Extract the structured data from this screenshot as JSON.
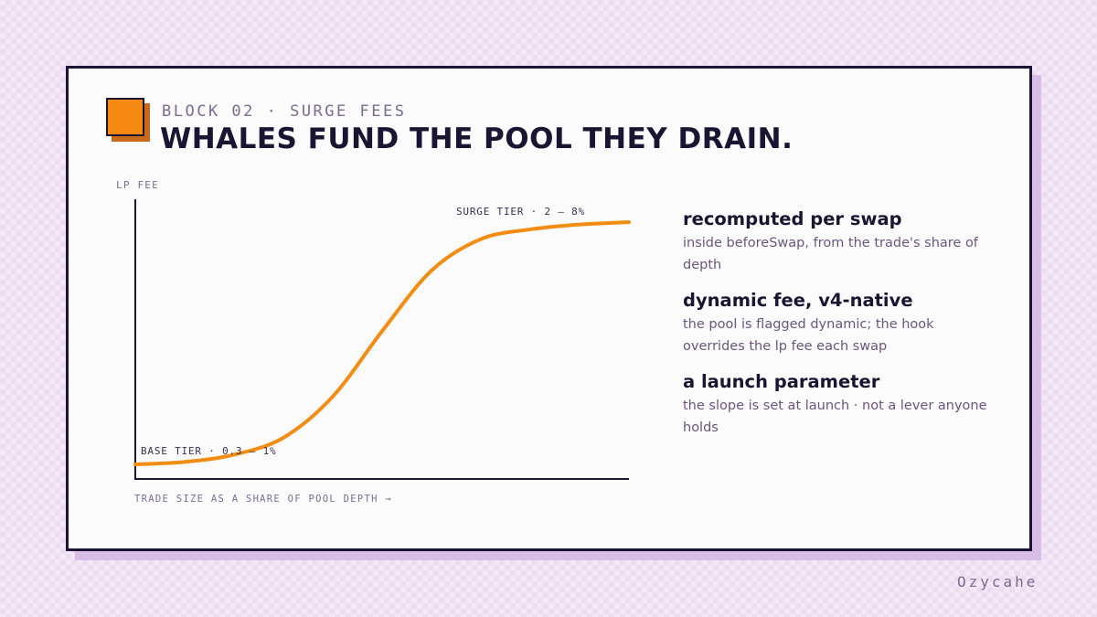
{
  "slide": {
    "eyebrow": "BLOCK 02 · SURGE FEES",
    "title": "WHALES FUND THE POOL THEY DRAIN."
  },
  "chart_data": {
    "type": "line",
    "ylabel": "LP FEE",
    "xlabel": "TRADE SIZE AS A SHARE OF POOL DEPTH →",
    "annotations": {
      "top": "SURGE TIER · 2 — 8%",
      "bottom": "BASE TIER · 0.3 — 1%"
    },
    "curve": "sigmoid",
    "x": [
      0,
      0.1,
      0.2,
      0.3,
      0.4,
      0.5,
      0.6,
      0.7,
      0.8,
      0.9,
      1.0
    ],
    "y": [
      0.0,
      0.01,
      0.04,
      0.11,
      0.28,
      0.55,
      0.8,
      0.93,
      0.97,
      0.99,
      1.0
    ],
    "line_color": "#f28c12",
    "axis_color": "#1c1433"
  },
  "points": [
    {
      "title": "recomputed per swap",
      "body": "inside beforeSwap, from the trade's share of depth"
    },
    {
      "title": "dynamic fee, v4-native",
      "body": "the pool is flagged dynamic; the hook overrides the lp fee each swap"
    },
    {
      "title": "a launch parameter",
      "body": "the slope is set at launch · not a lever anyone holds"
    }
  ],
  "signature": "Ozycahe",
  "colors": {
    "ink": "#1c1433",
    "accent": "#f58a13",
    "muted": "#7b6b93",
    "card": "#fbfbfb"
  }
}
